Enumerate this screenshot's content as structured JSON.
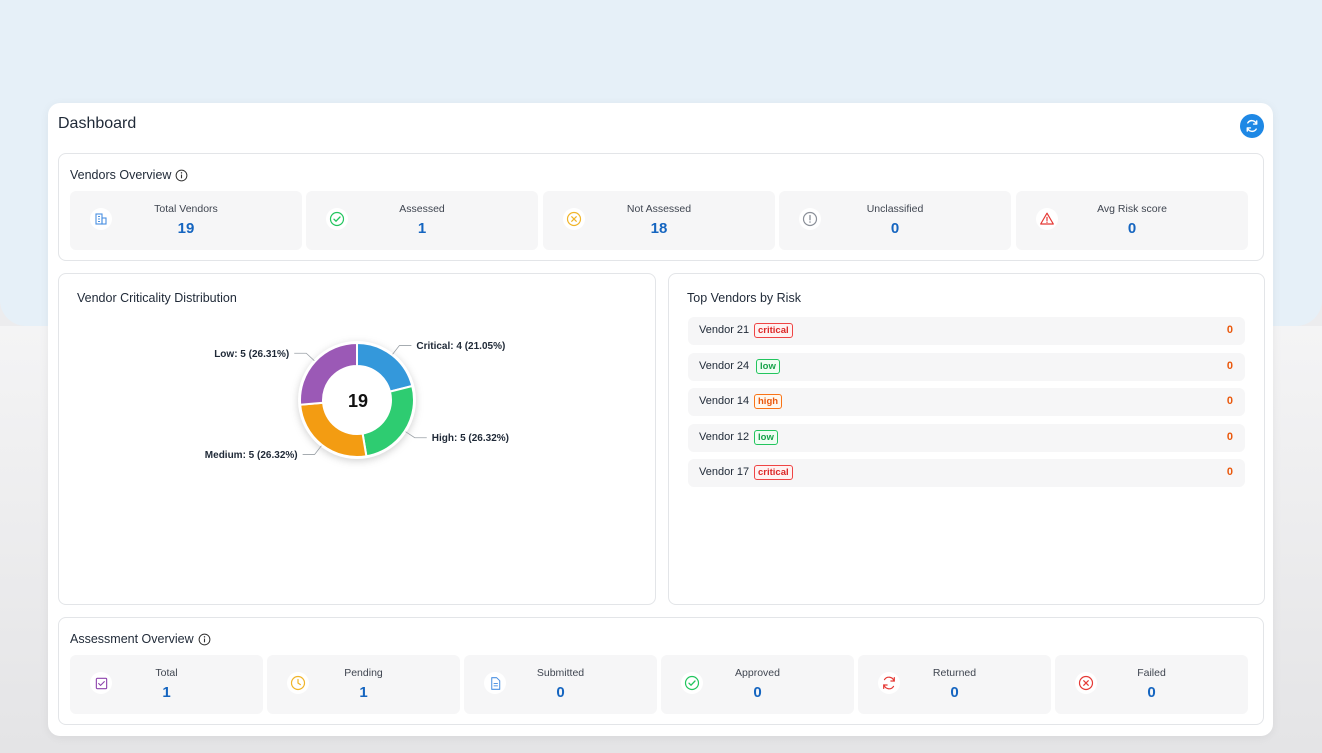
{
  "header": {
    "title": "Dashboard",
    "refresh_icon": "refresh-icon"
  },
  "vendors_overview": {
    "title": "Vendors Overview",
    "stats": [
      {
        "label": "Total Vendors",
        "value": "19",
        "icon": "building-icon",
        "color": "#4a90e2"
      },
      {
        "label": "Assessed",
        "value": "1",
        "icon": "check-circle-icon",
        "color": "#22c55e"
      },
      {
        "label": "Not Assessed",
        "value": "18",
        "icon": "x-circle-icon",
        "color": "#f0b429"
      },
      {
        "label": "Unclassified",
        "value": "0",
        "icon": "exclamation-circle-icon",
        "color": "#8a8f98"
      },
      {
        "label": "Avg Risk score",
        "value": "0",
        "icon": "warning-triangle-icon",
        "color": "#e53935"
      }
    ]
  },
  "criticality": {
    "title": "Vendor Criticality Distribution",
    "center_value": "19"
  },
  "chart_data": {
    "type": "pie",
    "donut": true,
    "total": 19,
    "slices": [
      {
        "label": "Critical: 4 (21.05%)",
        "name": "Critical",
        "value": 4,
        "percent": 21.05,
        "color": "#3498db"
      },
      {
        "label": "High: 5 (26.32%)",
        "name": "High",
        "value": 5,
        "percent": 26.32,
        "color": "#2ecc71"
      },
      {
        "label": "Medium: 5 (26.32%)",
        "name": "Medium",
        "value": 5,
        "percent": 26.32,
        "color": "#f39c12"
      },
      {
        "label": "Low: 5 (26.31%)",
        "name": "Low",
        "value": 5,
        "percent": 26.31,
        "color": "#9b59b6"
      }
    ]
  },
  "top_vendors": {
    "title": "Top Vendors by Risk",
    "rows": [
      {
        "name": "Vendor 21",
        "badge": "critical",
        "score": "0"
      },
      {
        "name": "Vendor 24",
        "badge": "low",
        "score": "0"
      },
      {
        "name": "Vendor 14",
        "badge": "high",
        "score": "0"
      },
      {
        "name": "Vendor 12",
        "badge": "low",
        "score": "0"
      },
      {
        "name": "Vendor 17",
        "badge": "critical",
        "score": "0"
      }
    ]
  },
  "assessment_overview": {
    "title": "Assessment Overview",
    "stats": [
      {
        "label": "Total",
        "value": "1",
        "icon": "checkbox-icon",
        "color": "#8e44ad"
      },
      {
        "label": "Pending",
        "value": "1",
        "icon": "clock-icon",
        "color": "#f0b429"
      },
      {
        "label": "Submitted",
        "value": "0",
        "icon": "document-icon",
        "color": "#4a90e2"
      },
      {
        "label": "Approved",
        "value": "0",
        "icon": "check-circle-icon",
        "color": "#22c55e"
      },
      {
        "label": "Returned",
        "value": "0",
        "icon": "rotate-icon",
        "color": "#e53935"
      },
      {
        "label": "Failed",
        "value": "0",
        "icon": "x-circle-icon",
        "color": "#e53935"
      }
    ]
  },
  "colors": {
    "accent": "#1565c0",
    "score": "#ea580c",
    "refresh": "#1e88e5"
  }
}
